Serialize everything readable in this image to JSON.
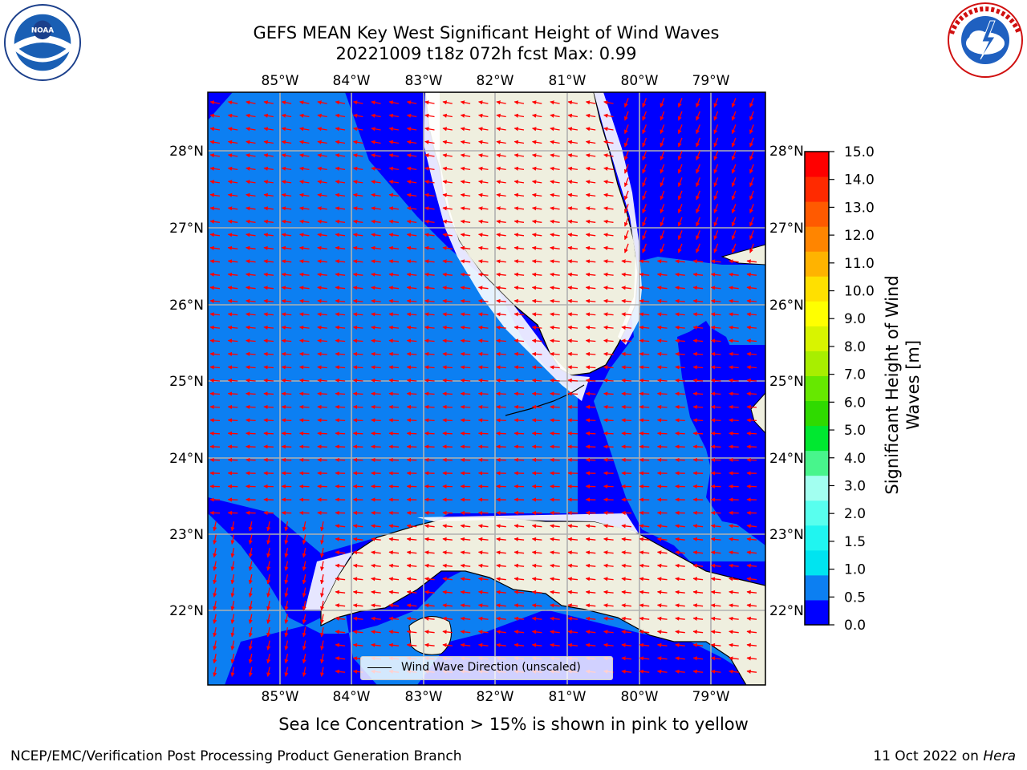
{
  "header": {
    "title_line1": "GEFS MEAN Key West Significant Height of Wind Waves",
    "title_line2": "20221009 t18z 072h fcst    Max: 0.99"
  },
  "logos": {
    "left": "NOAA",
    "right": "NATIONAL WEATHER SERVICE",
    "left_ring": "NATIONAL OCEANIC AND ATMOSPHERIC ADMINISTRATION",
    "left_bottom": "U.S. DEPARTMENT OF COMMERCE"
  },
  "map": {
    "lon_ticks": [
      "85°W",
      "84°W",
      "83°W",
      "82°W",
      "81°W",
      "80°W",
      "79°W"
    ],
    "lat_ticks": [
      "28°N",
      "27°N",
      "26°N",
      "25°N",
      "24°N",
      "23°N",
      "22°N"
    ],
    "lon_range": [
      -86.0,
      -78.35
    ],
    "lat_range": [
      21.05,
      28.78
    ],
    "colors": {
      "band_0_0.5": "#0000ff",
      "band_0.5_1.0": "#0c7ff2",
      "land": "#efefdf",
      "coastline": "#000000",
      "grid": "#b0b0b0",
      "vectors": "#ff0000"
    },
    "legend": {
      "label": "Wind Wave Direction (unscaled)"
    }
  },
  "colorbar": {
    "label_line1": "Significant Height of Wind",
    "label_line2": "Waves [m]",
    "ticks": [
      "15.0",
      "14.0",
      "13.0",
      "12.0",
      "11.0",
      "10.0",
      "9.0",
      "8.0",
      "7.0",
      "6.0",
      "5.0",
      "4.0",
      "3.0",
      "2.0",
      "1.5",
      "1.0",
      "0.5",
      "0.0"
    ],
    "colors_bottom_to_top": [
      "#0000ff",
      "#0c7ff2",
      "#00e4f0",
      "#20f5f0",
      "#58ffee",
      "#a2fff0",
      "#48f58c",
      "#00e830",
      "#2fda00",
      "#66e800",
      "#a8ee00",
      "#d8f400",
      "#ffff00",
      "#ffe000",
      "#ffb300",
      "#ff8500",
      "#ff5a00",
      "#ff2a00",
      "#ff0000"
    ]
  },
  "notes": {
    "ice": "Sea Ice Concentration > 15% is shown in pink to yellow",
    "producer": "NCEP/EMC/Verification Post Processing Product Generation Branch",
    "date": "11 Oct 2022 on",
    "host": "Hera"
  }
}
